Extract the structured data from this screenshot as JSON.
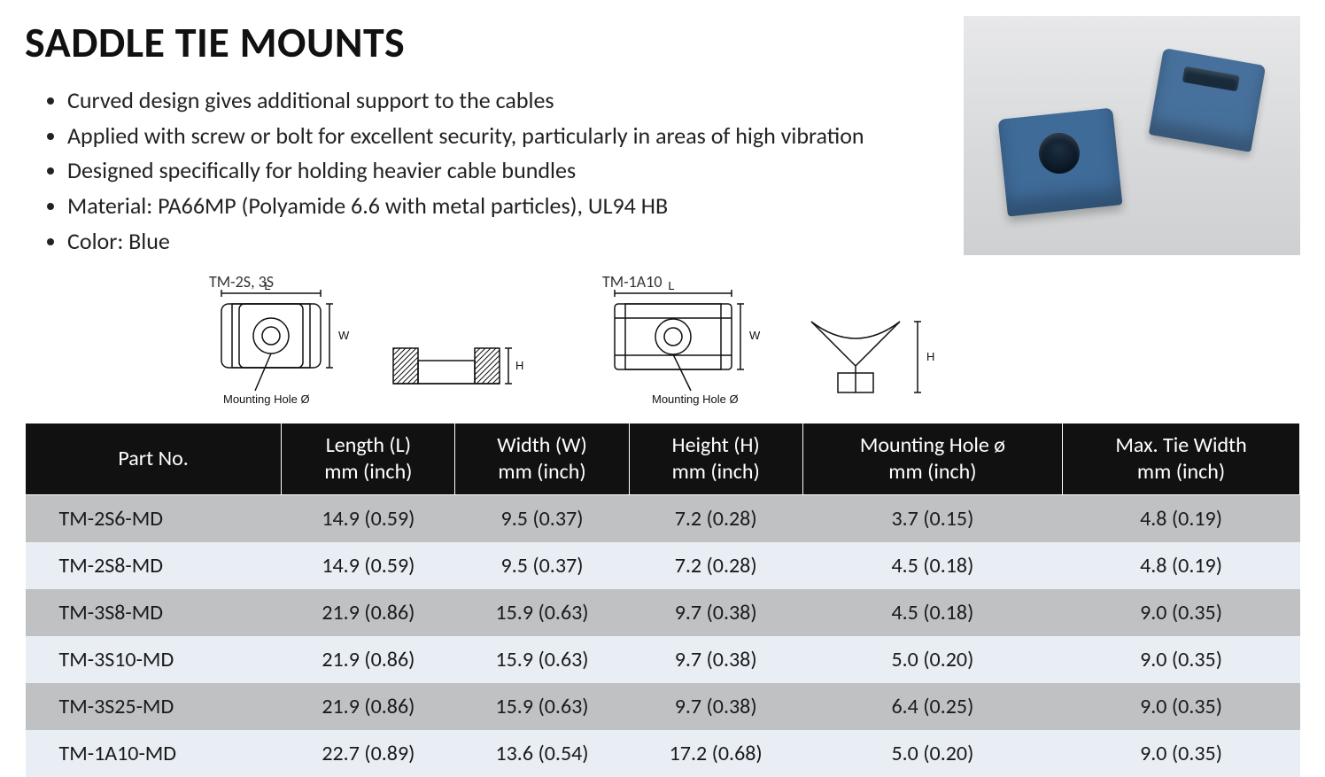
{
  "title": "SADDLE TIE MOUNTS",
  "features": [
    "Curved design gives additional support to the cables",
    "Applied with screw or bolt for excellent security, particularly in areas of high vibration",
    "Designed specifically for holding heavier cable bundles",
    "Material: PA66MP (Polyamide 6.6 with metal particles), UL94 HB",
    "Color: Blue"
  ],
  "diagram_labels": {
    "left": "TM-2S, 3S",
    "right": "TM-1A10",
    "L": "L",
    "W": "W",
    "H": "H",
    "mounting_hole": "Mounting Hole Ø"
  },
  "product_image": {
    "background_color": "#d8d9db",
    "item_color": "#3f6b99",
    "description": "two blue saddle tie mounts"
  },
  "table": {
    "header_bg": "#111111",
    "header_fg": "#ffffff",
    "row_grey": "#bfc1c3",
    "row_blue": "#e8eef4",
    "font_size": 24,
    "columns": [
      "Part No.",
      "Length (L)\nmm (inch)",
      "Width (W)\nmm (inch)",
      "Height (H)\nmm (inch)",
      "Mounting Hole ø\nmm (inch)",
      "Max. Tie Width\nmm (inch)"
    ],
    "rows": [
      [
        "TM-2S6-MD",
        "14.9 (0.59)",
        "9.5 (0.37)",
        "7.2 (0.28)",
        "3.7 (0.15)",
        "4.8 (0.19)"
      ],
      [
        "TM-2S8-MD",
        "14.9 (0.59)",
        "9.5 (0.37)",
        "7.2 (0.28)",
        "4.5 (0.18)",
        "4.8 (0.19)"
      ],
      [
        "TM-3S8-MD",
        "21.9 (0.86)",
        "15.9 (0.63)",
        "9.7 (0.38)",
        "4.5 (0.18)",
        "9.0 (0.35)"
      ],
      [
        "TM-3S10-MD",
        "21.9 (0.86)",
        "15.9 (0.63)",
        "9.7 (0.38)",
        "5.0 (0.20)",
        "9.0 (0.35)"
      ],
      [
        "TM-3S25-MD",
        "21.9 (0.86)",
        "15.9 (0.63)",
        "9.7 (0.38)",
        "6.4 (0.25)",
        "9.0 (0.35)"
      ],
      [
        "TM-1A10-MD",
        "22.7 (0.89)",
        "13.6 (0.54)",
        "17.2 (0.68)",
        "5.0 (0.20)",
        "9.0 (0.35)"
      ]
    ],
    "row_pattern": [
      "grey",
      "blue",
      "grey",
      "blue",
      "grey",
      "blue"
    ]
  }
}
